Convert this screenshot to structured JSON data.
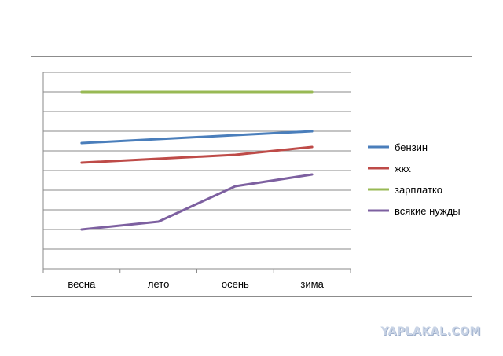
{
  "chart_data": {
    "type": "line",
    "title": "",
    "xlabel": "",
    "ylabel": "",
    "categories": [
      "весна",
      "лето",
      "осень",
      "зима"
    ],
    "ylim": [
      0,
      10
    ],
    "grid": true,
    "legend_position": "right",
    "series": [
      {
        "name": "бензин",
        "color": "#4a7ebb",
        "values": [
          6.4,
          6.6,
          6.8,
          7.0
        ]
      },
      {
        "name": "жкх",
        "color": "#be4b48",
        "values": [
          5.4,
          5.6,
          5.8,
          6.2
        ]
      },
      {
        "name": "зарплатко",
        "color": "#98b954",
        "values": [
          9.0,
          9.0,
          9.0,
          9.0
        ]
      },
      {
        "name": "всякие нужды",
        "color": "#7d60a0",
        "values": [
          2.0,
          2.4,
          4.2,
          4.8
        ]
      }
    ]
  },
  "watermark": "YAPLAKAL.COM"
}
